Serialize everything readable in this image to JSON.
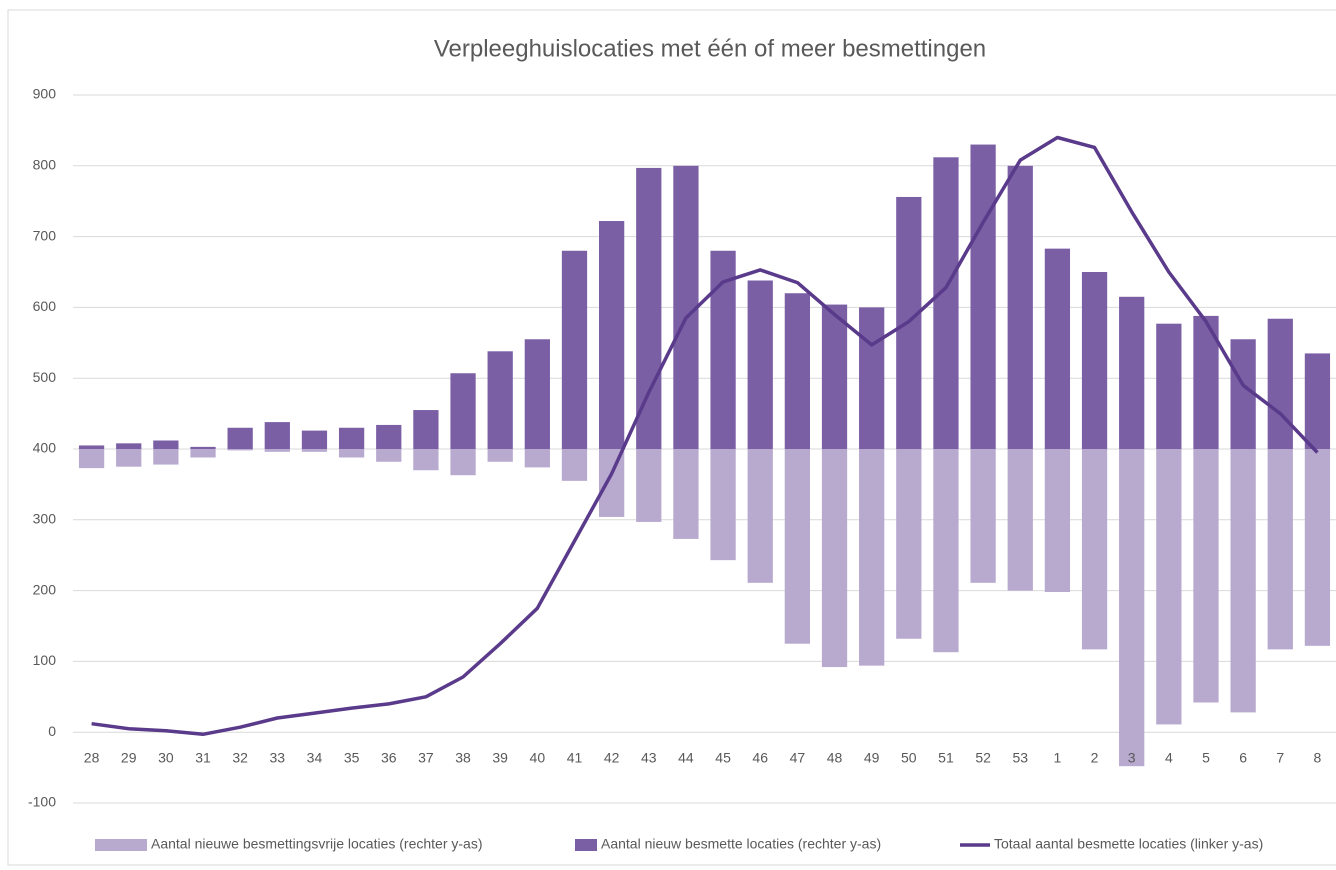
{
  "chart_data": {
    "type": "bar-line",
    "title": "Verpleeghuislocaties met één of meer besmettingen",
    "categories": [
      "28",
      "29",
      "30",
      "31",
      "32",
      "33",
      "34",
      "35",
      "36",
      "37",
      "38",
      "39",
      "40",
      "41",
      "42",
      "43",
      "44",
      "45",
      "46",
      "47",
      "48",
      "49",
      "50",
      "51",
      "52",
      "53",
      "1",
      "2",
      "3",
      "4",
      "5",
      "6",
      "7",
      "8"
    ],
    "ylim": [
      -100,
      900
    ],
    "yticks": [
      -100,
      0,
      100,
      200,
      300,
      400,
      500,
      600,
      700,
      800,
      900
    ],
    "y2lim": [
      -500,
      500
    ],
    "grid": true,
    "legend": "bottom",
    "series": [
      {
        "name": "Aantal nieuwe besmettingsvrije locaties (rechter y-as)",
        "type": "bar",
        "axis": "y2",
        "color": "#b8a9cf",
        "values": [
          -27,
          -25,
          -22,
          -12,
          -2,
          -4,
          -4,
          -12,
          -18,
          -30,
          -37,
          -18,
          -26,
          -45,
          -96,
          -103,
          -127,
          -157,
          -189,
          -275,
          -308,
          -306,
          -268,
          -287,
          -189,
          -200,
          -202,
          -283,
          -448,
          -389,
          -358,
          -372,
          -283,
          -278
        ]
      },
      {
        "name": "Aantal nieuw besmette locaties (rechter y-as)",
        "type": "bar",
        "axis": "y2",
        "color": "#7b5fa5",
        "values": [
          5,
          8,
          12,
          3,
          30,
          38,
          26,
          30,
          34,
          55,
          107,
          138,
          155,
          280,
          322,
          397,
          400,
          280,
          238,
          220,
          204,
          200,
          356,
          412,
          430,
          400,
          283,
          250,
          215,
          177,
          188,
          155,
          184,
          135
        ]
      },
      {
        "name": "Totaal aantal besmette locaties (linker y-as)",
        "type": "line",
        "color": "#5a3a8a",
        "values": [
          12,
          5,
          2,
          -3,
          7,
          20,
          27,
          34,
          40,
          50,
          78,
          125,
          175,
          270,
          365,
          480,
          585,
          636,
          653,
          635,
          590,
          547,
          580,
          628,
          720,
          808,
          840,
          826,
          735,
          650,
          580,
          490,
          450,
          395
        ]
      }
    ]
  }
}
